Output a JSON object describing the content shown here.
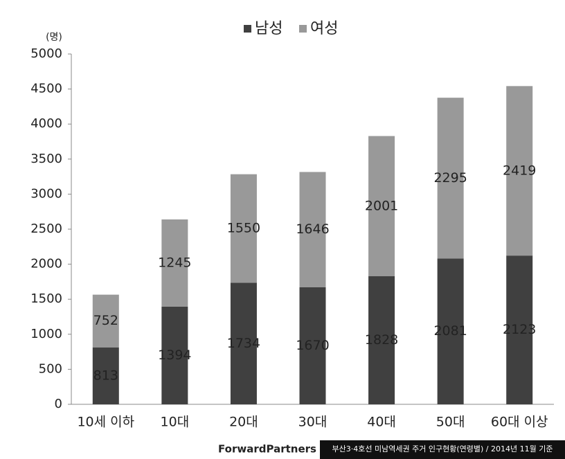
{
  "chart_data": {
    "type": "stacked_bar",
    "y_unit_label": "(명)",
    "categories": [
      "10세 이하",
      "10대",
      "20대",
      "30대",
      "40대",
      "50대",
      "60대 이상"
    ],
    "series": [
      {
        "name": "남성",
        "color": "#404040",
        "values": [
          813,
          1394,
          1734,
          1670,
          1828,
          2081,
          2123
        ]
      },
      {
        "name": "여성",
        "color": "#999999",
        "values": [
          752,
          1245,
          1550,
          1646,
          2001,
          2295,
          2419
        ]
      }
    ],
    "ylim": [
      0,
      5000
    ],
    "yticks": [
      0,
      500,
      1000,
      1500,
      2000,
      2500,
      3000,
      3500,
      4000,
      4500,
      5000
    ],
    "legend": "top",
    "logo": "ForwardPartners",
    "source": "부산3·4호선 미남역세권 주거 인구현황(연령별) / 2014년 11월 기준"
  }
}
